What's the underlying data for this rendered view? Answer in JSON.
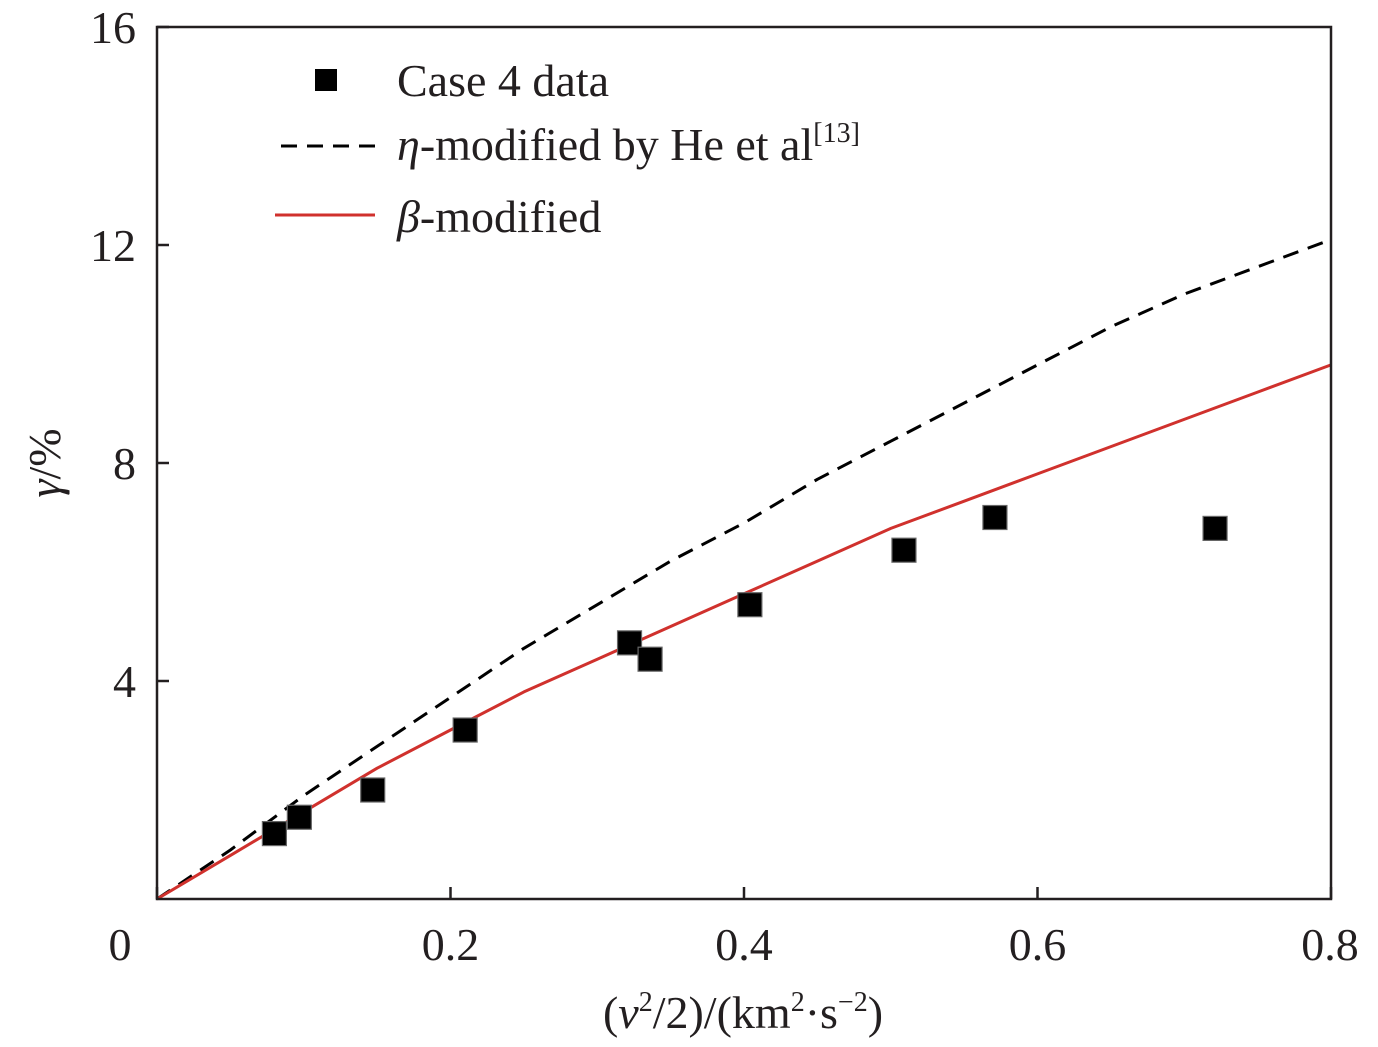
{
  "chart_data": {
    "type": "scatter",
    "xlim": [
      0,
      0.8
    ],
    "ylim": [
      0,
      16
    ],
    "x_ticks": [
      "0",
      "0.2",
      "0.4",
      "0.6",
      "0.8"
    ],
    "y_ticks": [
      "4",
      "8",
      "12",
      "16"
    ],
    "xlabel": {
      "pre": "(",
      "var": "v",
      "sup1": "2",
      "mid": "/2)/(km",
      "sup2": "2",
      "dot": "·s",
      "sup3": "−2",
      "post": ")"
    },
    "ylabel": {
      "var": "γ",
      "rest": "/%"
    },
    "grid": false,
    "legend_position": "top-left",
    "series": [
      {
        "name": "Case 4 data",
        "kind": "markers",
        "color": "#000000",
        "points": [
          [
            0.08,
            1.2
          ],
          [
            0.097,
            1.5
          ],
          [
            0.147,
            2.0
          ],
          [
            0.21,
            3.1
          ],
          [
            0.322,
            4.7
          ],
          [
            0.336,
            4.4
          ],
          [
            0.404,
            5.4
          ],
          [
            0.509,
            6.4
          ],
          [
            0.571,
            7.0
          ],
          [
            0.721,
            6.8
          ]
        ]
      },
      {
        "name": {
          "var": "η",
          "rest": "-modified by He et al",
          "sup": "[13]"
        },
        "kind": "dashed-line",
        "color": "#000000",
        "points": [
          [
            0.0,
            0.0
          ],
          [
            0.05,
            0.9
          ],
          [
            0.1,
            1.9
          ],
          [
            0.15,
            2.8
          ],
          [
            0.2,
            3.7
          ],
          [
            0.25,
            4.6
          ],
          [
            0.3,
            5.4
          ],
          [
            0.35,
            6.2
          ],
          [
            0.4,
            6.9
          ],
          [
            0.45,
            7.7
          ],
          [
            0.5,
            8.4
          ],
          [
            0.55,
            9.1
          ],
          [
            0.6,
            9.8
          ],
          [
            0.65,
            10.5
          ],
          [
            0.7,
            11.1
          ],
          [
            0.75,
            11.6
          ],
          [
            0.8,
            12.1
          ]
        ]
      },
      {
        "name": {
          "var": "β",
          "rest": "-modified"
        },
        "kind": "solid-line",
        "color": "#d0312d",
        "points": [
          [
            0.0,
            0.0
          ],
          [
            0.05,
            0.8
          ],
          [
            0.1,
            1.6
          ],
          [
            0.15,
            2.4
          ],
          [
            0.2,
            3.1
          ],
          [
            0.25,
            3.8
          ],
          [
            0.3,
            4.4
          ],
          [
            0.35,
            5.0
          ],
          [
            0.4,
            5.6
          ],
          [
            0.45,
            6.2
          ],
          [
            0.5,
            6.8
          ],
          [
            0.55,
            7.3
          ],
          [
            0.6,
            7.8
          ],
          [
            0.65,
            8.3
          ],
          [
            0.7,
            8.8
          ],
          [
            0.75,
            9.3
          ],
          [
            0.8,
            9.8
          ]
        ]
      }
    ]
  }
}
